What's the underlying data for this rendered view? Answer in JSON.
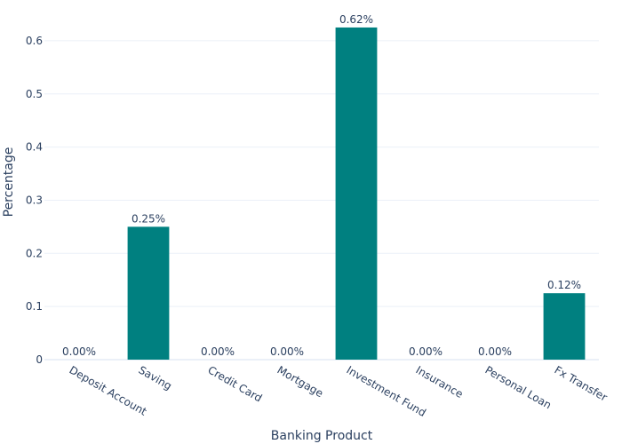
{
  "chart_data": {
    "type": "bar",
    "title": "",
    "xlabel": "Banking Product",
    "ylabel": "Percentage",
    "categories": [
      "Deposit Account",
      "Saving",
      "Credit Card",
      "Mortgage",
      "Investment Fund",
      "Insurance",
      "Personal Loan",
      "Fx Transfer"
    ],
    "values": [
      0.0,
      0.25,
      0.0,
      0.0,
      0.625,
      0.0,
      0.0,
      0.125
    ],
    "data_labels": [
      "0.00%",
      "0.25%",
      "0.00%",
      "0.00%",
      "0.62%",
      "0.00%",
      "0.00%",
      "0.12%"
    ],
    "ylim": [
      0,
      0.66
    ],
    "yticks": [
      0,
      0.1,
      0.2,
      0.3,
      0.4,
      0.5,
      0.6
    ],
    "ytick_labels": [
      "0",
      "0.1",
      "0.2",
      "0.3",
      "0.4",
      "0.5",
      "0.6"
    ],
    "grid": true,
    "legend": "none",
    "bar_color": "#008080"
  }
}
